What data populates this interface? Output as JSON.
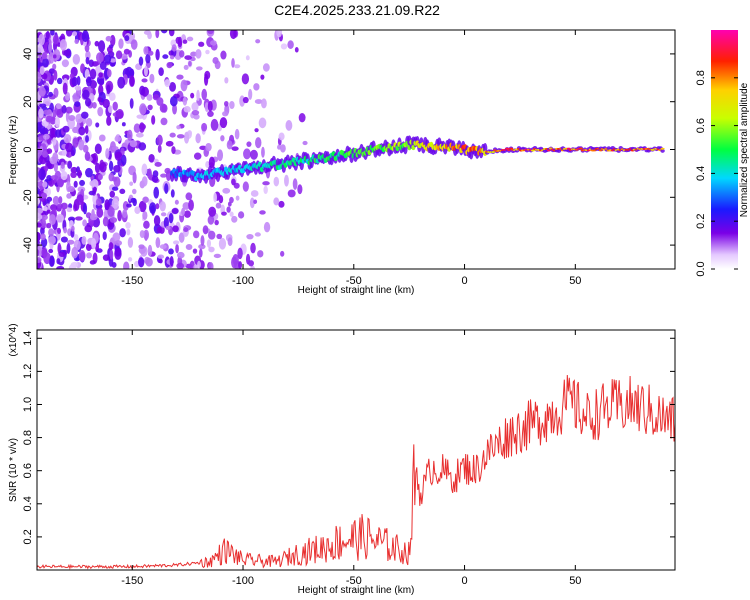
{
  "title": "C2E4.2025.233.21.09.R22",
  "chart_data": [
    {
      "type": "heatmap",
      "xlabel": "Height of straight line (km)",
      "ylabel": "Frequency (Hz)",
      "xlim": [
        -193,
        95
      ],
      "ylim": [
        -50,
        50
      ],
      "xticks": [
        -150,
        -100,
        -50,
        0,
        50
      ],
      "yticks": [
        -40,
        -20,
        0,
        20,
        40
      ],
      "colorbar": {
        "label": "Normalized spectral amplitude",
        "range": [
          0,
          1
        ],
        "ticks": [
          0.0,
          0.2,
          0.4,
          0.6,
          0.8
        ],
        "colormap": "rainbow (white-violet-blue-cyan-green-yellow-red-magenta)"
      },
      "ridge": {
        "description": "signal ridge frequency vs height",
        "x": [
          -132,
          -120,
          -100,
          -80,
          -60,
          -40,
          -25,
          -10,
          0,
          10,
          20,
          50,
          90
        ],
        "y": [
          -10,
          -11,
          -8,
          -6,
          -3,
          0,
          2,
          1,
          0,
          -1,
          0,
          0,
          0
        ],
        "peak_amplitude": [
          0.35,
          0.4,
          0.45,
          0.5,
          0.55,
          0.6,
          0.7,
          0.85,
          0.9,
          0.85,
          0.95,
          0.95,
          0.9
        ]
      }
    },
    {
      "type": "line",
      "xlabel": "Height of straight line (km)",
      "ylabel": "SNR (10 * v/v)",
      "y_multiplier": "(x10^4)",
      "xlim": [
        -193,
        95
      ],
      "ylim": [
        0,
        1.45
      ],
      "xticks": [
        -150,
        -100,
        -50,
        0,
        50
      ],
      "yticks": [
        0.2,
        0.4,
        0.6,
        0.8,
        1.0,
        1.2,
        1.4
      ],
      "series": [
        {
          "name": "SNR",
          "color": "#e83030",
          "x": [
            -193,
            -150,
            -130,
            -115,
            -108,
            -100,
            -85,
            -75,
            -65,
            -55,
            -45,
            -35,
            -25,
            -22,
            -20,
            -15,
            -10,
            -5,
            0,
            5,
            10,
            20,
            30,
            40,
            48,
            55,
            65,
            75,
            85,
            92
          ],
          "y": [
            0.02,
            0.02,
            0.03,
            0.05,
            0.12,
            0.06,
            0.05,
            0.1,
            0.13,
            0.18,
            0.2,
            0.15,
            0.1,
            0.62,
            0.45,
            0.62,
            0.6,
            0.55,
            0.62,
            0.6,
            0.7,
            0.82,
            0.88,
            0.95,
            1.02,
            0.92,
            0.98,
            1.0,
            0.95,
            0.9
          ]
        }
      ]
    }
  ]
}
